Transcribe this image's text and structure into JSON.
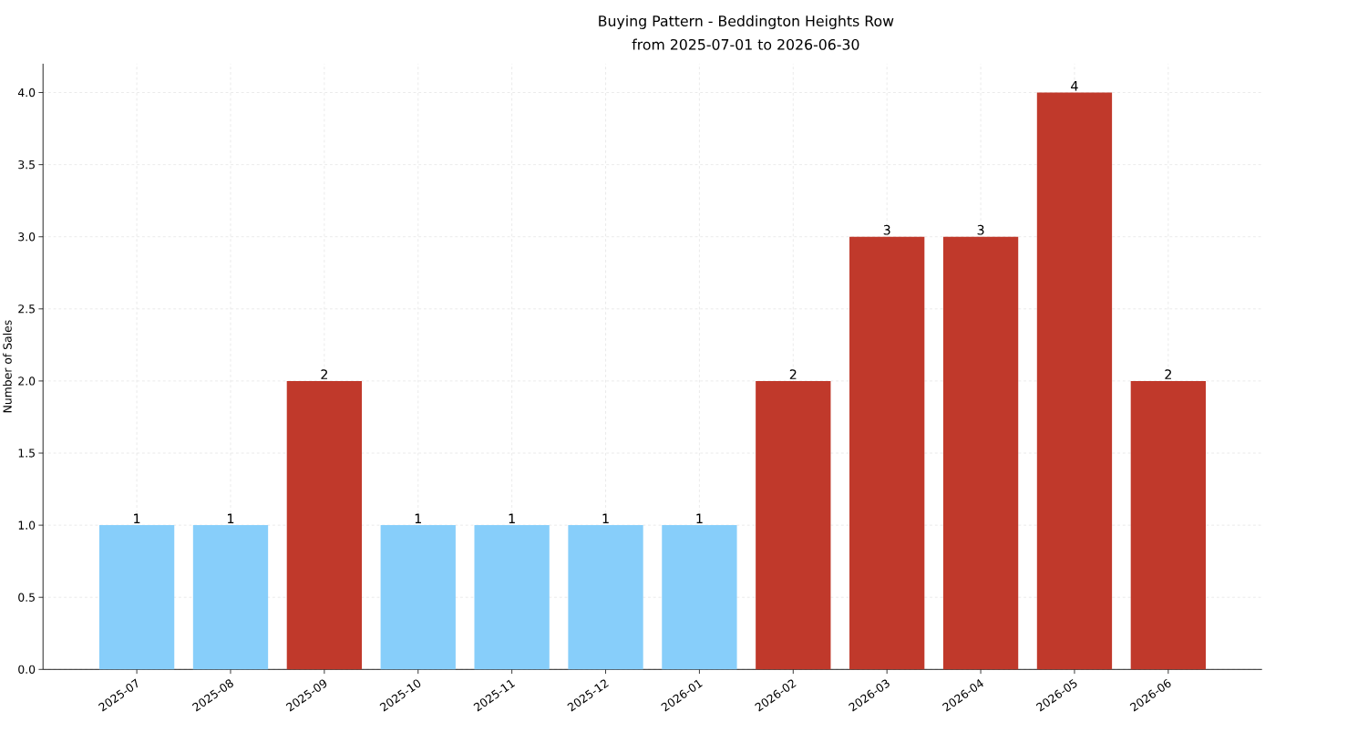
{
  "chart_data": {
    "type": "bar",
    "title": "Buying Pattern - Beddington Heights Row",
    "subtitle": "from 2025-07-01 to 2026-06-30",
    "ylabel": "Number of Sales",
    "categories": [
      "2025-07",
      "2025-08",
      "2025-09",
      "2025-10",
      "2025-11",
      "2025-12",
      "2026-01",
      "2026-02",
      "2026-03",
      "2026-04",
      "2026-05",
      "2026-06"
    ],
    "values": [
      1,
      1,
      2,
      1,
      1,
      1,
      1,
      2,
      3,
      3,
      4,
      2
    ],
    "colors": [
      "#87cefa",
      "#87cefa",
      "#c0392b",
      "#87cefa",
      "#87cefa",
      "#87cefa",
      "#87cefa",
      "#c0392b",
      "#c0392b",
      "#c0392b",
      "#c0392b",
      "#c0392b"
    ],
    "ylim": [
      0,
      4.2
    ],
    "yticks": [
      {
        "value": 0,
        "label": "0.0"
      },
      {
        "value": 0.5,
        "label": "0.5"
      },
      {
        "value": 1,
        "label": "1.0"
      },
      {
        "value": 1.5,
        "label": "1.5"
      },
      {
        "value": 2,
        "label": "2.0"
      },
      {
        "value": 2.5,
        "label": "2.5"
      },
      {
        "value": 3,
        "label": "3.0"
      },
      {
        "value": 3.5,
        "label": "3.5"
      },
      {
        "value": 4,
        "label": "4.0"
      }
    ],
    "grid": true,
    "data_labels": true
  }
}
